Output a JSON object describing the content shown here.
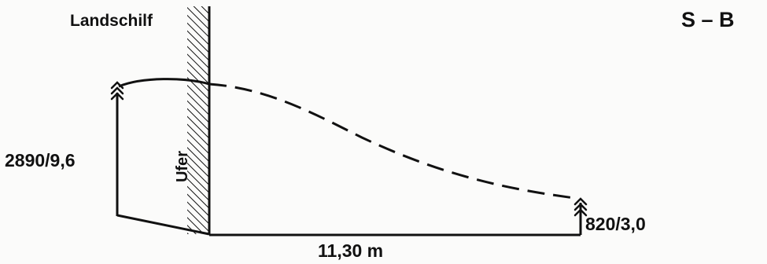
{
  "labels": {
    "site_name": "Landschilf",
    "profile_id": "S – B",
    "shore": "Ufer",
    "left_measurement": "2890/9,6",
    "right_measurement": "820/3,0",
    "distance": "11,30 m"
  },
  "colors": {
    "ink": "#111111",
    "background": "#fbfbfa"
  },
  "icons": {
    "plant_symbol": "reed-stem-icon"
  }
}
